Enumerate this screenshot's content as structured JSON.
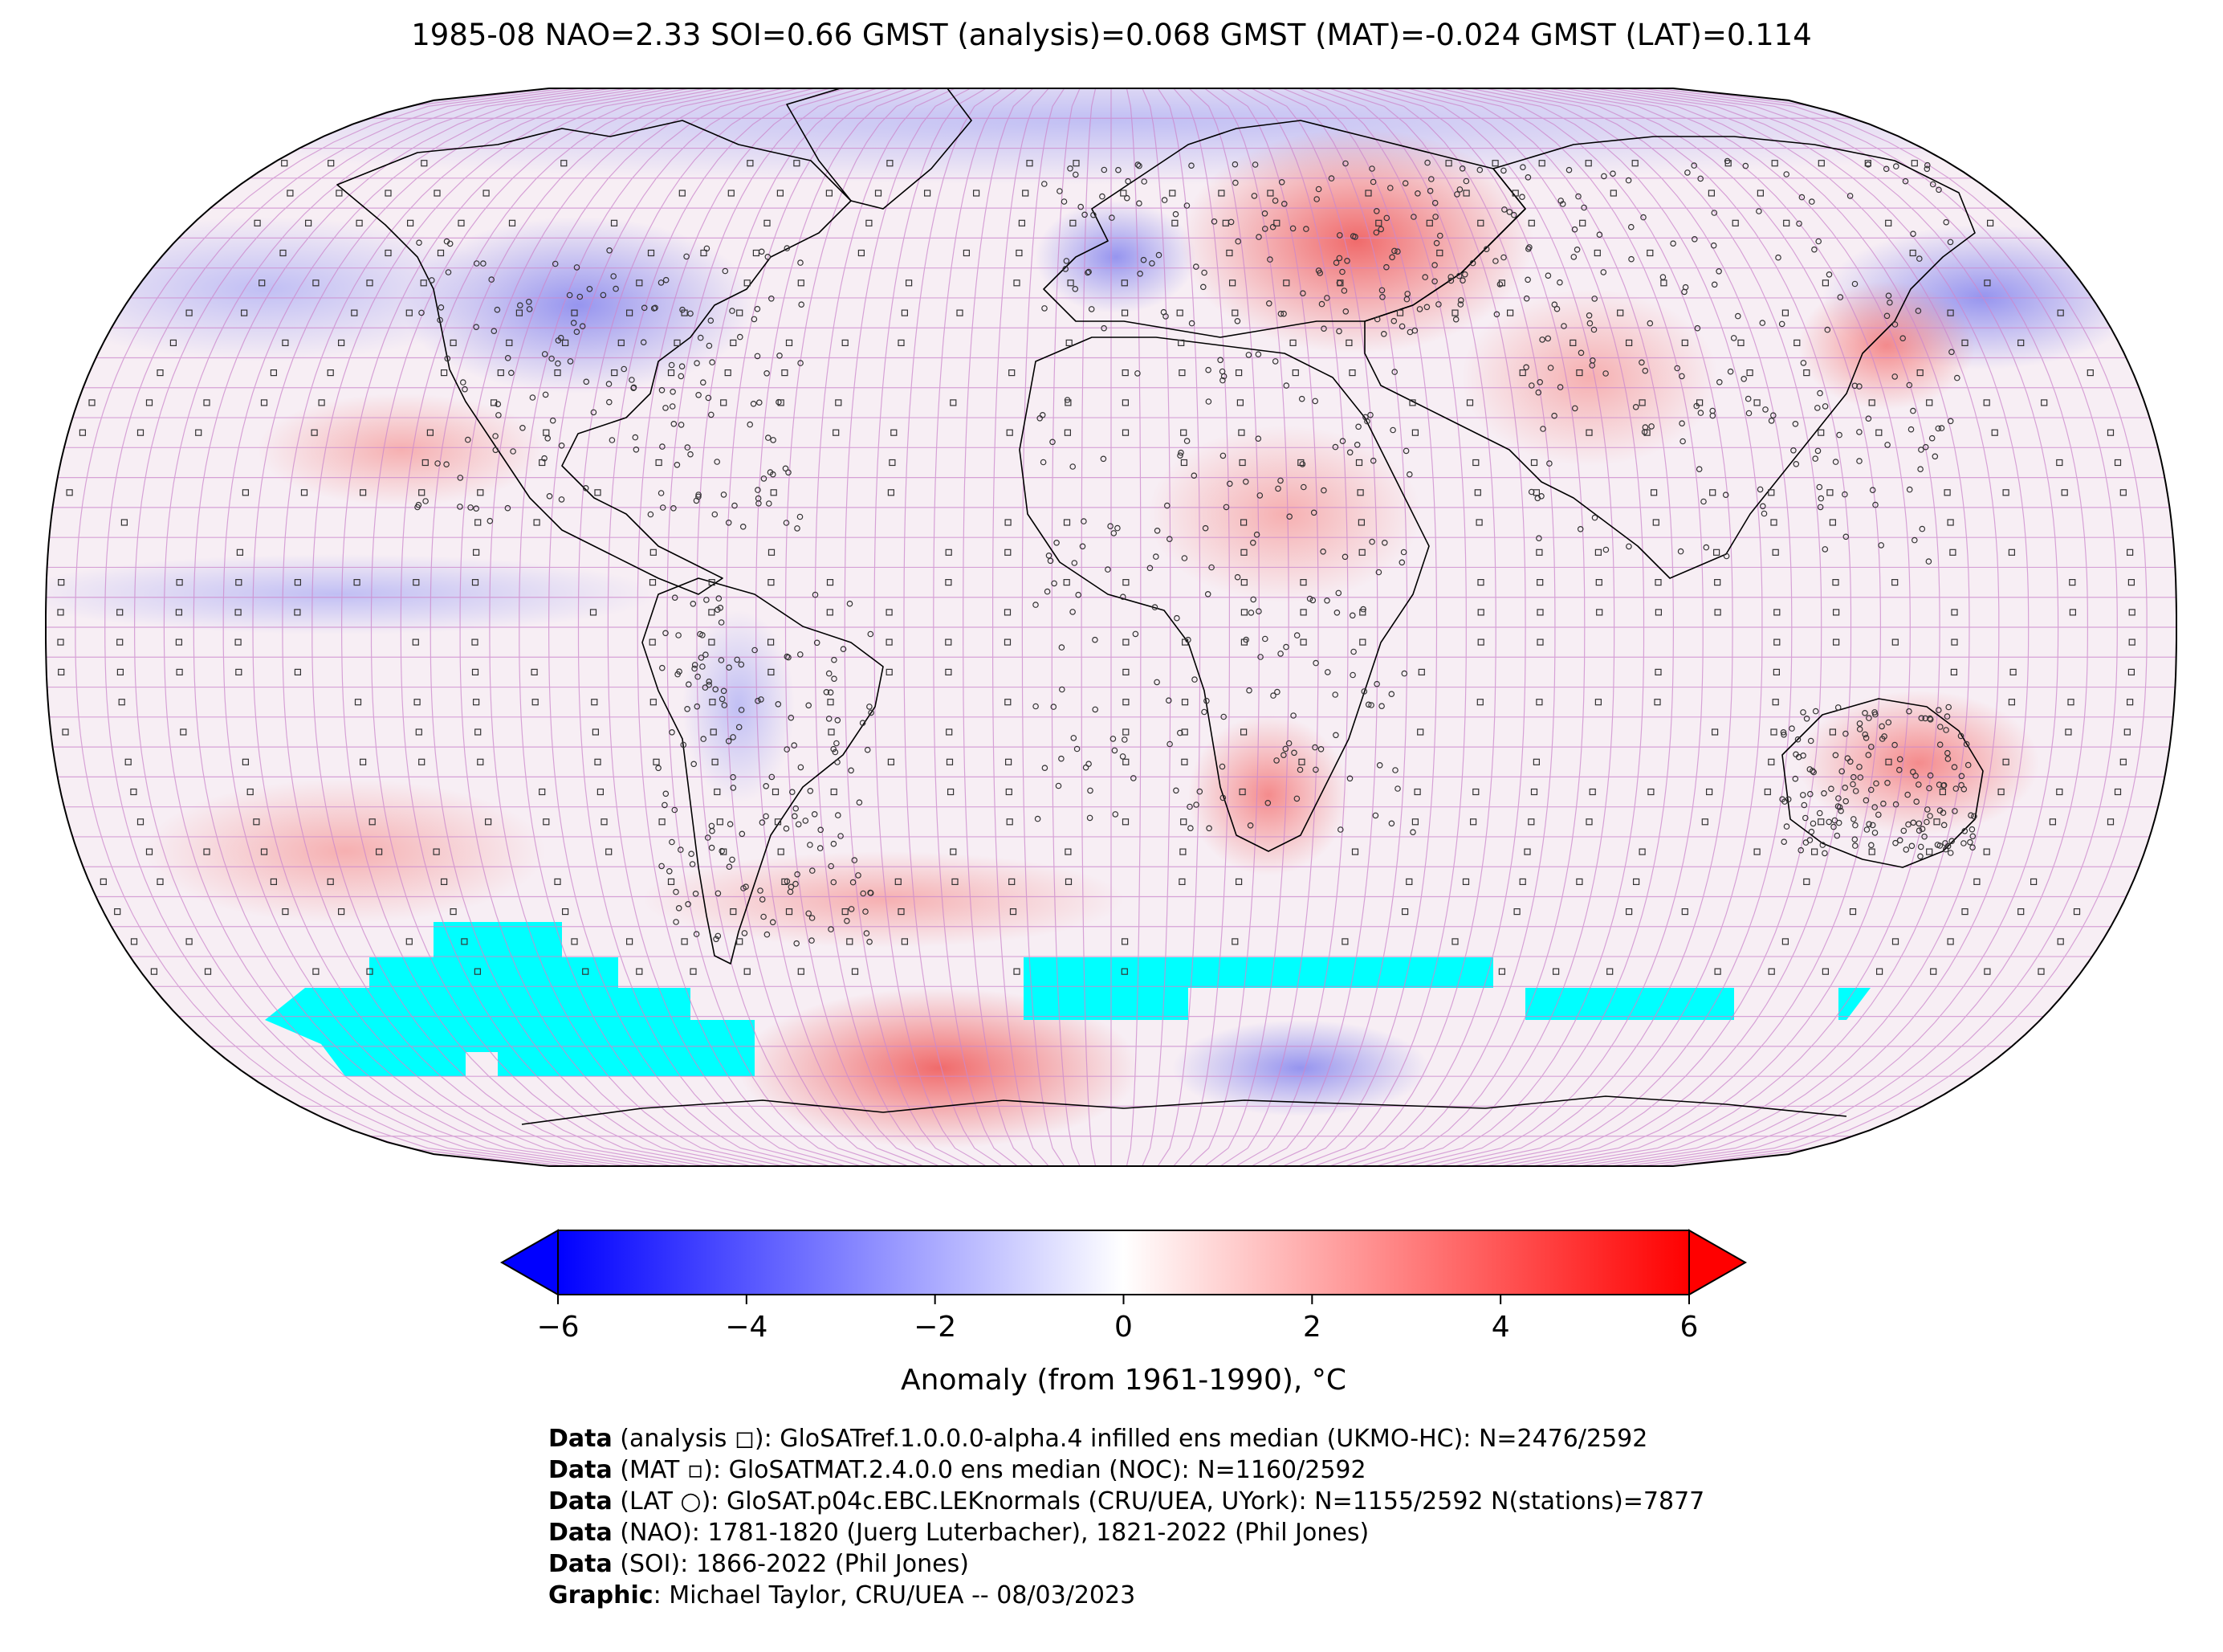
{
  "title": "1985-08 NAO=2.33 SOI=0.66 GMST (analysis)=0.068 GMST (MAT)=-0.024 GMST (LAT)=0.114",
  "map": {
    "projection": "Robinson",
    "variable": "Temperature anomaly",
    "missing_color": "#00FFFF",
    "gridline_color": "#CC88CC",
    "anomaly_regions": [
      {
        "name": "Eastern Europe / Western Russia",
        "anomaly": 3.0
      },
      {
        "name": "Caspian / Central Asia",
        "anomaly": 2.5
      },
      {
        "name": "Northeast China / Korea",
        "anomaly": 2.5
      },
      {
        "name": "Central Australia",
        "anomaly": 2.5
      },
      {
        "name": "Southern Africa",
        "anomaly": 2.2
      },
      {
        "name": "South Pacific / Antarctic coast",
        "anomaly": 2.5
      },
      {
        "name": "Central North America",
        "anomaly": -2.0
      },
      {
        "name": "North Pacific high latitudes",
        "anomaly": -1.5
      },
      {
        "name": "Northwest Pacific (Kamchatka)",
        "anomaly": -2.0
      },
      {
        "name": "Western Europe",
        "anomaly": -1.5
      },
      {
        "name": "Southern Indian Ocean / Antarctic",
        "anomaly": -1.5
      },
      {
        "name": "Equatorial Pacific",
        "anomaly": -0.8
      }
    ],
    "missing_regions": [
      "Southern Ocean (Pacific sector)",
      "Southern Ocean (Indian Ocean sector)"
    ]
  },
  "colorbar": {
    "min": -6,
    "max": 6,
    "ticks": [
      "−6",
      "−4",
      "−2",
      "0",
      "2",
      "4",
      "6"
    ],
    "tick_values": [
      -6,
      -4,
      -2,
      0,
      2,
      4,
      6
    ],
    "label": "Anomaly (from 1961-1990), °C",
    "colors": {
      "low": "#0000FF",
      "mid": "#FFFFFF",
      "high": "#FF0000"
    },
    "extend": "both"
  },
  "credits": [
    {
      "bold": "Data",
      "text": " (analysis ◻): GloSATref.1.0.0.0-alpha.4 infilled ens median (UKMO-HC): N=2476/2592"
    },
    {
      "bold": "Data",
      "text": " (MAT ▫): GloSATMAT.2.4.0.0 ens median (NOC): N=1160/2592"
    },
    {
      "bold": "Data",
      "text": " (LAT ○): GloSAT.p04c.EBC.LEKnormals (CRU/UEA, UYork): N=1155/2592 N(stations)=7877"
    },
    {
      "bold": "Data",
      "text": " (NAO): 1781-1820 (Juerg Luterbacher), 1821-2022 (Phil Jones)"
    },
    {
      "bold": "Data",
      "text": " (SOI): 1866-2022 (Phil Jones)"
    },
    {
      "bold": "Graphic",
      "text": ": Michael Taylor, CRU/UEA -- 08/03/2023"
    }
  ]
}
